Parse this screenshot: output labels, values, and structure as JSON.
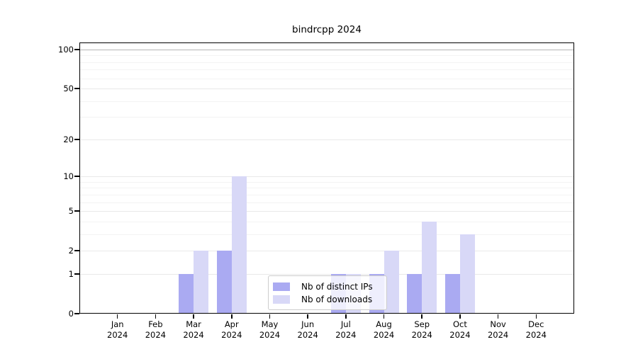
{
  "chart_data": {
    "type": "bar",
    "title": "bindrcpp 2024",
    "categories": [
      "Jan",
      "Feb",
      "Mar",
      "Apr",
      "May",
      "Jun",
      "Jul",
      "Aug",
      "Sep",
      "Oct",
      "Nov",
      "Dec"
    ],
    "year_label": "2024",
    "series": [
      {
        "name": "Nb of distinct IPs",
        "color": "#aaaaf2",
        "values": [
          0,
          0,
          1,
          2,
          0,
          0,
          1,
          1,
          1,
          1,
          0,
          0
        ]
      },
      {
        "name": "Nb of downloads",
        "color": "#d8d8f7",
        "values": [
          0,
          0,
          2,
          10,
          0,
          0,
          1,
          2,
          4,
          3,
          0,
          0
        ]
      }
    ],
    "yscale": "log1p",
    "yticks": [
      0,
      1,
      2,
      5,
      10,
      20,
      50,
      100
    ],
    "minor_gridlines": [
      3,
      4,
      6,
      7,
      8,
      9,
      30,
      40,
      60,
      70,
      80,
      90
    ],
    "major_gridlines": [
      1,
      2,
      5,
      10,
      20,
      50
    ],
    "emphasis_gridlines": [
      100
    ],
    "ylim": [
      0,
      115
    ],
    "xlabel": "",
    "ylabel": "",
    "grid": "horizontal",
    "legend_position": "lower-center-inside"
  },
  "colors": {
    "bar_distinct_ips": "#aaaaf2",
    "bar_downloads": "#d8d8f7",
    "gridline_minor": "#f3f3f3",
    "gridline_major": "#e9e9e9",
    "gridline_emphasis": "#b7b7b7",
    "axis": "#000000",
    "legend_border": "#cccccc",
    "background": "#ffffff"
  }
}
